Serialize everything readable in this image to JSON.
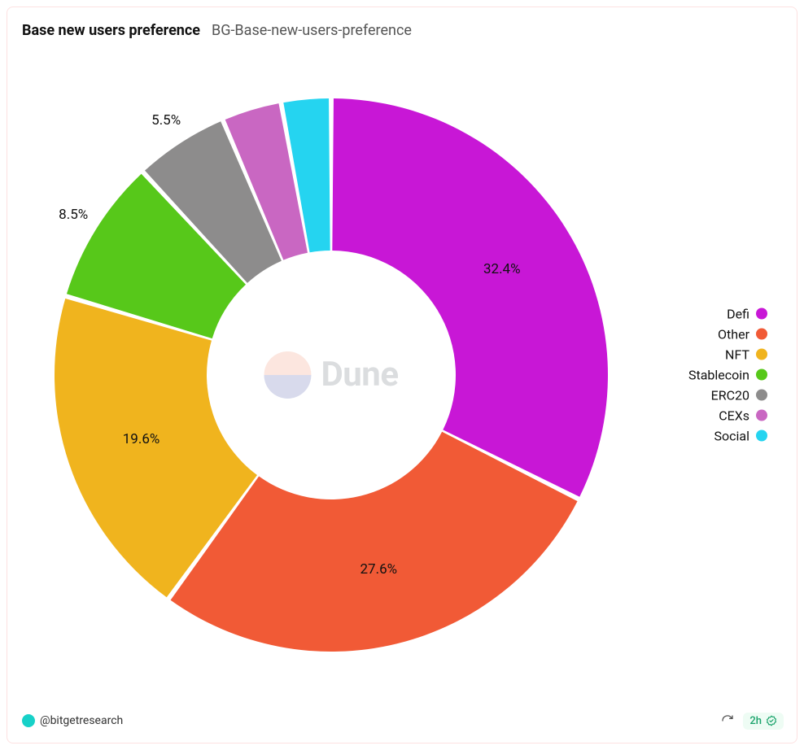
{
  "card": {
    "title": "Base new users preference",
    "subtitle": "BG-Base-new-users-preference",
    "border_color": "#fde1e1",
    "background_color": "#ffffff"
  },
  "chart": {
    "type": "donut",
    "inner_radius_ratio": 0.45,
    "gap_deg": 1.0,
    "start_angle_deg": -90,
    "direction": "clockwise",
    "label_fontsize": 17,
    "label_color": "#111111",
    "slices": [
      {
        "name": "Defi",
        "value": 32.4,
        "color": "#c817d6",
        "label": "32.4%",
        "show_inside": true
      },
      {
        "name": "Other",
        "value": 27.6,
        "color": "#f15a36",
        "label": "27.6%",
        "show_inside": true
      },
      {
        "name": "NFT",
        "value": 19.6,
        "color": "#f0b41e",
        "label": "19.6%",
        "show_inside": true
      },
      {
        "name": "Stablecoin",
        "value": 8.5,
        "color": "#57c81a",
        "label": "8.5%",
        "show_inside": false
      },
      {
        "name": "ERC20",
        "value": 5.5,
        "color": "#8d8c8c",
        "label": "5.5%",
        "show_inside": false
      },
      {
        "name": "CEXs",
        "value": 3.5,
        "color": "#c967c2",
        "label": "",
        "show_inside": false
      },
      {
        "name": "Social",
        "value": 2.9,
        "color": "#25d4f0",
        "label": "",
        "show_inside": false
      }
    ]
  },
  "legend": {
    "position": "right",
    "fontsize": 16,
    "items": [
      {
        "label": "Defi",
        "color": "#c817d6"
      },
      {
        "label": "Other",
        "color": "#f15a36"
      },
      {
        "label": "NFT",
        "color": "#f0b41e"
      },
      {
        "label": "Stablecoin",
        "color": "#57c81a"
      },
      {
        "label": "ERC20",
        "color": "#8d8c8c"
      },
      {
        "label": "CEXs",
        "color": "#c967c2"
      },
      {
        "label": "Social",
        "color": "#25d4f0"
      }
    ]
  },
  "watermark": {
    "text": "Dune"
  },
  "footer": {
    "author": "@bitgetresearch",
    "author_avatar_color": "#17d1c8",
    "age_label": "2h",
    "age_status_color": "#1aa36b"
  }
}
